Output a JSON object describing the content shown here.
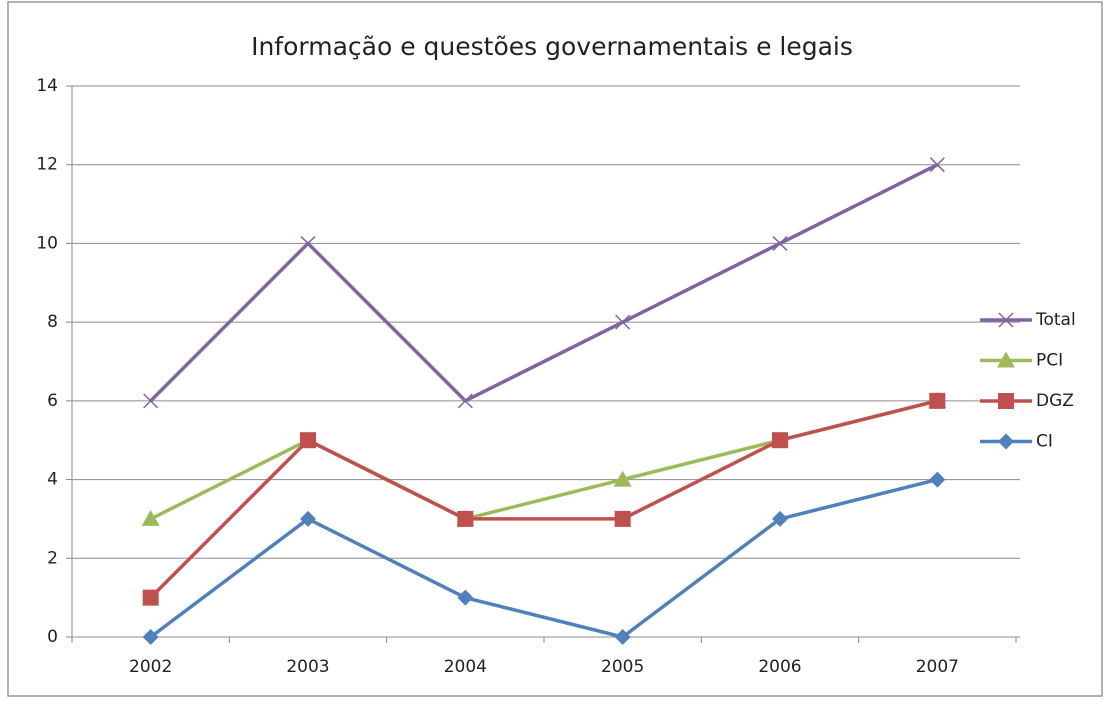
{
  "chart_data": {
    "type": "line",
    "title": "Informação e questões governamentais e legais",
    "categories": [
      "2002",
      "2003",
      "2004",
      "2005",
      "2006",
      "2007"
    ],
    "series": [
      {
        "name": "Total",
        "color": "#8064a2",
        "marker": "x",
        "values": [
          6,
          10,
          6,
          8,
          10,
          12
        ]
      },
      {
        "name": "PCI",
        "color": "#9bbb59",
        "marker": "triangle",
        "values": [
          3,
          5,
          3,
          4,
          5,
          6
        ]
      },
      {
        "name": "DGZ",
        "color": "#c0504d",
        "marker": "square",
        "values": [
          1,
          5,
          3,
          3,
          5,
          6
        ]
      },
      {
        "name": "CI",
        "color": "#4f81bd",
        "marker": "diamond",
        "values": [
          0,
          3,
          1,
          0,
          3,
          4
        ]
      }
    ],
    "ylim": [
      0,
      14
    ],
    "yticks": [
      0,
      2,
      4,
      6,
      8,
      10,
      12,
      14
    ],
    "grid": true,
    "legend": "right"
  }
}
